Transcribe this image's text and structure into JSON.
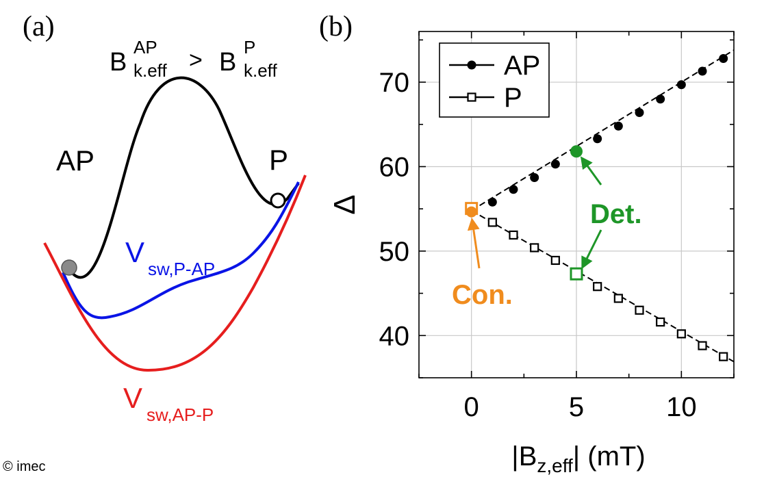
{
  "panel_a": {
    "label": "(a)",
    "inequality": {
      "b1": "B",
      "b1_sup": "AP",
      "b1_sub": "k.eff",
      "gt": ">",
      "b2": "B",
      "b2_sup": "P",
      "b2_sub": "k.eff"
    },
    "state_left": "AP",
    "state_right": "P",
    "curve_blue_label": {
      "main": "V",
      "sub": "sw,P-AP"
    },
    "curve_red_label": {
      "main": "V",
      "sub": "sw,AP-P"
    },
    "colors": {
      "black_curve": "#000000",
      "blue_curve": "#0a14e6",
      "red_curve": "#e61e1e",
      "ball": "#8a8a8a"
    }
  },
  "panel_b": {
    "label": "(b)"
  },
  "copyright": "© imec",
  "chart_data": {
    "type": "scatter",
    "xlabel": {
      "open": "|B",
      "sub": "z,eff",
      "close": "| (mT)"
    },
    "ylabel": "Δ",
    "xlim": [
      -2.5,
      12.5
    ],
    "ylim": [
      35,
      76
    ],
    "xticks": [
      0,
      5,
      10
    ],
    "yticks": [
      40,
      50,
      60,
      70
    ],
    "grid": true,
    "legend": {
      "placement": "top-left",
      "entries": [
        {
          "label": "AP",
          "marker": "filled-circle"
        },
        {
          "label": "P",
          "marker": "open-square"
        }
      ]
    },
    "series": [
      {
        "name": "AP",
        "marker": "circle",
        "filled": true,
        "color": "#000000",
        "x": [
          1,
          2,
          3,
          4,
          5,
          6,
          7,
          8,
          9,
          10,
          11,
          12
        ],
        "y": [
          55.8,
          57.3,
          58.7,
          60.3,
          61.8,
          63.3,
          64.8,
          66.4,
          68.0,
          69.7,
          71.3,
          72.8
        ]
      },
      {
        "name": "P",
        "marker": "square",
        "filled": false,
        "color": "#000000",
        "x": [
          1,
          2,
          3,
          4,
          5,
          6,
          7,
          8,
          9,
          10,
          11,
          12
        ],
        "y": [
          53.4,
          51.9,
          50.4,
          48.9,
          47.3,
          45.8,
          44.4,
          43.0,
          41.6,
          40.2,
          38.8,
          37.5
        ]
      }
    ],
    "fit_lines": [
      {
        "series": "AP",
        "from": [
          0,
          54.8
        ],
        "to": [
          12.5,
          73.8
        ]
      },
      {
        "series": "P",
        "from": [
          0,
          54.8
        ],
        "to": [
          12.5,
          36.9
        ]
      }
    ],
    "highlights": [
      {
        "label": "Con.",
        "x": 0,
        "y": 54.8,
        "color": "#f08c1e"
      },
      {
        "label": "Det.",
        "points": [
          {
            "x": 5,
            "y": 61.8
          },
          {
            "x": 5,
            "y": 47.3
          }
        ],
        "color": "#1e9628"
      }
    ]
  }
}
